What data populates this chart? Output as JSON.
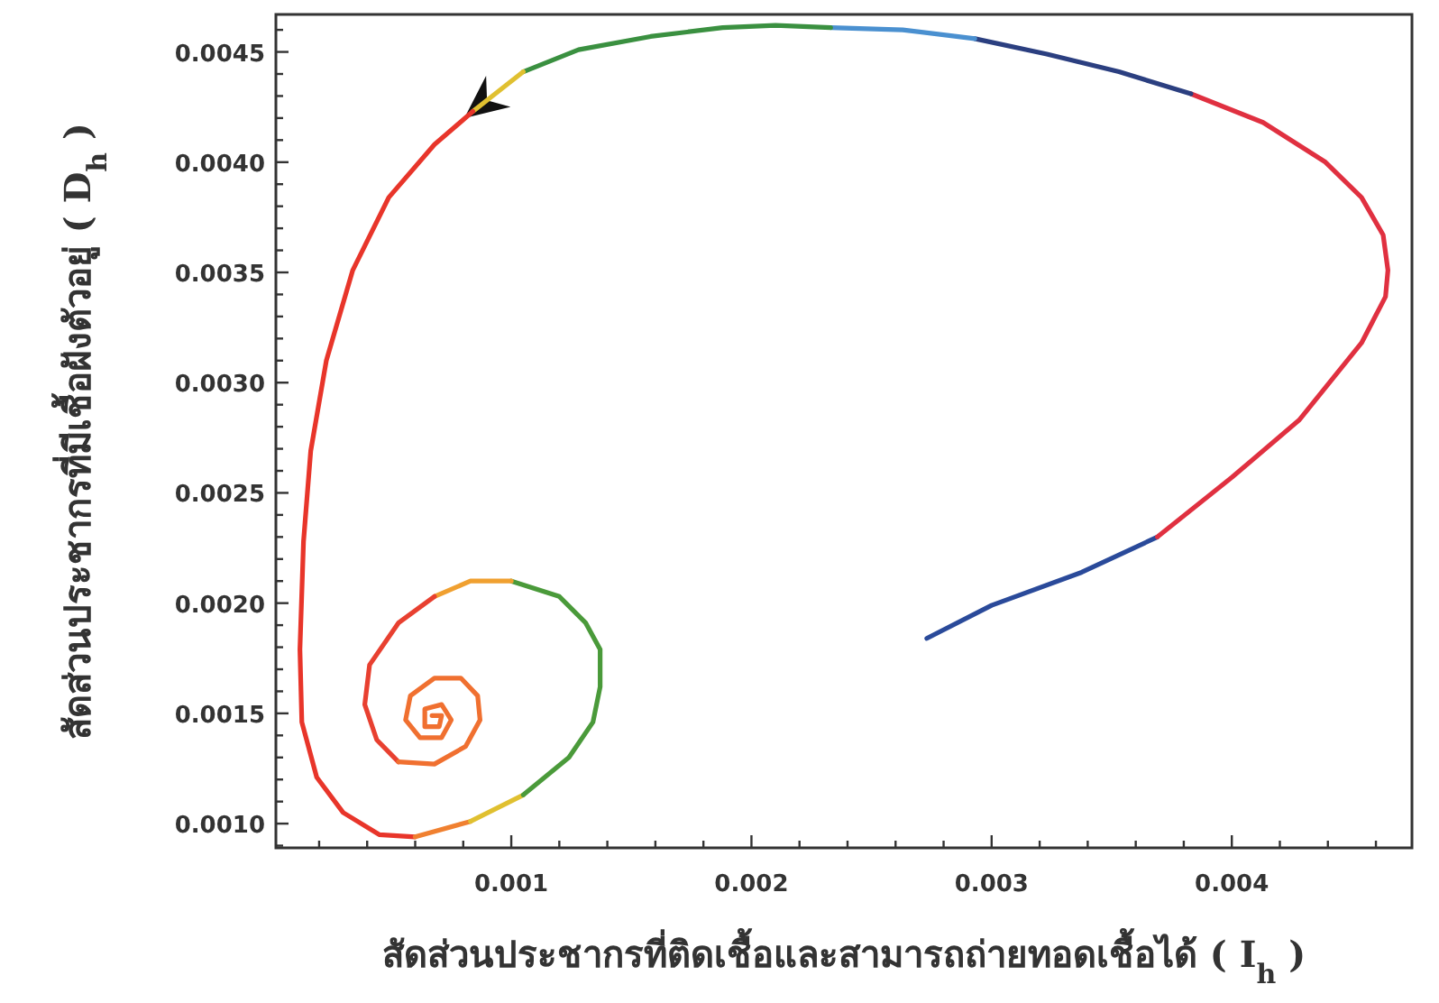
{
  "chart_data": {
    "type": "line",
    "xlabel": "สัดส่วนประชากรที่ติดเชื้อและสามารถถ่ายทอดเชื้อได้ ( I$_{h}$ )",
    "ylabel": "สัดส่วนประชากรที่มีเชื้อฝังตัวอยู่ ( D$_{h}$ )",
    "xlim": [
      2e-05,
      0.00475
    ],
    "ylim": [
      0.00089,
      0.00467
    ],
    "xticks": [
      {
        "value": 0.0002,
        "label": null
      },
      {
        "value": 0.0004,
        "label": null
      },
      {
        "value": 0.0006,
        "label": null
      },
      {
        "value": 0.0008,
        "label": null
      },
      0.001,
      {
        "value": 0.0012,
        "label": null
      },
      {
        "value": 0.0014,
        "label": null
      },
      {
        "value": 0.0016,
        "label": null
      },
      {
        "value": 0.0018,
        "label": null
      },
      0.002,
      {
        "value": 0.0022,
        "label": null
      },
      {
        "value": 0.0024,
        "label": null
      },
      {
        "value": 0.0026,
        "label": null
      },
      {
        "value": 0.0028,
        "label": null
      },
      0.003,
      {
        "value": 0.0032,
        "label": null
      },
      {
        "value": 0.0034,
        "label": null
      },
      {
        "value": 0.0036,
        "label": null
      },
      {
        "value": 0.0038,
        "label": null
      },
      0.004,
      {
        "value": 0.0042,
        "label": null
      },
      {
        "value": 0.0044,
        "label": null
      },
      {
        "value": 0.0046,
        "label": null
      }
    ],
    "yticks": [
      {
        "value": 0.0009,
        "label": null
      },
      {
        "value": 0.001,
        "label": "0.0010"
      },
      {
        "value": 0.0011,
        "label": null
      },
      {
        "value": 0.0012,
        "label": null
      },
      {
        "value": 0.0013,
        "label": null
      },
      {
        "value": 0.0014,
        "label": null
      },
      {
        "value": 0.0015,
        "label": "0.0015"
      },
      {
        "value": 0.0016,
        "label": null
      },
      {
        "value": 0.0017,
        "label": null
      },
      {
        "value": 0.0018,
        "label": null
      },
      {
        "value": 0.0019,
        "label": null
      },
      {
        "value": 0.002,
        "label": "0.0020"
      },
      {
        "value": 0.0021,
        "label": null
      },
      {
        "value": 0.0022,
        "label": null
      },
      {
        "value": 0.0023,
        "label": null
      },
      {
        "value": 0.0024,
        "label": null
      },
      {
        "value": 0.0025,
        "label": "0.0025"
      },
      {
        "value": 0.0026,
        "label": null
      },
      {
        "value": 0.0027,
        "label": null
      },
      {
        "value": 0.0028,
        "label": null
      },
      {
        "value": 0.0029,
        "label": null
      },
      {
        "value": 0.003,
        "label": "0.0030"
      },
      {
        "value": 0.0031,
        "label": null
      },
      {
        "value": 0.0032,
        "label": null
      },
      {
        "value": 0.0033,
        "label": null
      },
      {
        "value": 0.0034,
        "label": null
      },
      {
        "value": 0.0035,
        "label": "0.0035"
      },
      {
        "value": 0.0036,
        "label": null
      },
      {
        "value": 0.0037,
        "label": null
      },
      {
        "value": 0.0038,
        "label": null
      },
      {
        "value": 0.0039,
        "label": null
      },
      {
        "value": 0.004,
        "label": "0.0040"
      },
      {
        "value": 0.0041,
        "label": null
      },
      {
        "value": 0.0042,
        "label": null
      },
      {
        "value": 0.0043,
        "label": null
      },
      {
        "value": 0.0044,
        "label": null
      },
      {
        "value": 0.0045,
        "label": "0.0045"
      },
      {
        "value": 0.0046,
        "label": null
      }
    ],
    "grid": false,
    "marker": "none",
    "line_style": "solid",
    "series": [
      {
        "color": "#2a4a9a",
        "x": [
          0.00273,
          0.003,
          0.003375,
          0.00369
        ],
        "values": [
          0.00184,
          0.00199,
          0.00214,
          0.0023
        ]
      },
      {
        "color": "#e03040",
        "x": [
          0.00369,
          0.004,
          0.00428,
          0.00454,
          0.00464,
          0.00465,
          0.00463,
          0.00454,
          0.00439,
          0.00413,
          0.00383
        ],
        "values": [
          0.0023,
          0.00257,
          0.00283,
          0.00318,
          0.00339,
          0.00351,
          0.00367,
          0.00384,
          0.004,
          0.00418,
          0.00431
        ]
      },
      {
        "color": "#2b3f80",
        "x": [
          0.00383,
          0.00353,
          0.00323,
          0.00293
        ],
        "values": [
          0.00431,
          0.00441,
          0.00449,
          0.00456
        ]
      },
      {
        "color": "#4a90d0",
        "x": [
          0.00293,
          0.00263,
          0.00233
        ],
        "values": [
          0.00456,
          0.0046,
          0.00461
        ]
      },
      {
        "color": "#3a9040",
        "x": [
          0.00233,
          0.0021,
          0.00188,
          0.00158,
          0.00128,
          0.00105
        ],
        "values": [
          0.00461,
          0.00462,
          0.00461,
          0.00457,
          0.00451,
          0.00441
        ]
      },
      {
        "color": "#e0c030",
        "x": [
          0.00105,
          0.00084
        ],
        "values": [
          0.00441,
          0.00423
        ]
      },
      {
        "color": "#e8352a",
        "x": [
          0.00084,
          0.00068,
          0.00049,
          0.00034,
          0.00023,
          0.000165,
          0.000135,
          0.00012,
          0.000128,
          0.00019,
          0.0003,
          0.00045,
          0.0006
        ],
        "values": [
          0.00423,
          0.00408,
          0.00384,
          0.00351,
          0.0031,
          0.00269,
          0.00228,
          0.00179,
          0.00146,
          0.00121,
          0.00105,
          0.00095,
          0.00094
        ]
      },
      {
        "color": "#f08030",
        "x": [
          0.0006,
          0.00083
        ],
        "values": [
          0.00094,
          0.00101
        ]
      },
      {
        "color": "#e0c030",
        "x": [
          0.00083,
          0.00105
        ],
        "values": [
          0.00101,
          0.00113
        ]
      },
      {
        "color": "#4a9a3a",
        "x": [
          0.00105,
          0.00124,
          0.00134,
          0.00137,
          0.00137,
          0.00131,
          0.0012,
          0.001
        ],
        "values": [
          0.00113,
          0.0013,
          0.00146,
          0.00162,
          0.00179,
          0.00191,
          0.00203,
          0.0021
        ]
      },
      {
        "color": "#f0a030",
        "x": [
          0.001,
          0.00083,
          0.00068
        ],
        "values": [
          0.0021,
          0.0021,
          0.00203
        ]
      },
      {
        "color": "#e84030",
        "x": [
          0.00068,
          0.00053,
          0.00041,
          0.00039,
          0.00044,
          0.00053
        ],
        "values": [
          0.00203,
          0.00191,
          0.00172,
          0.00154,
          0.00138,
          0.00128
        ]
      },
      {
        "color": "#f07030",
        "x": [
          0.00053,
          0.00068,
          0.00081,
          0.00087,
          0.00086,
          0.00079,
          0.00068,
          0.00058,
          0.00056,
          0.00062,
          0.00071,
          0.00075,
          0.00071,
          0.00064,
          0.00064,
          0.0007,
          0.00071,
          0.00067
        ],
        "values": [
          0.00128,
          0.00127,
          0.00135,
          0.00147,
          0.00158,
          0.00166,
          0.00166,
          0.00158,
          0.00147,
          0.00139,
          0.00139,
          0.00147,
          0.00154,
          0.00152,
          0.00144,
          0.00144,
          0.00149,
          0.00149
        ]
      }
    ]
  }
}
